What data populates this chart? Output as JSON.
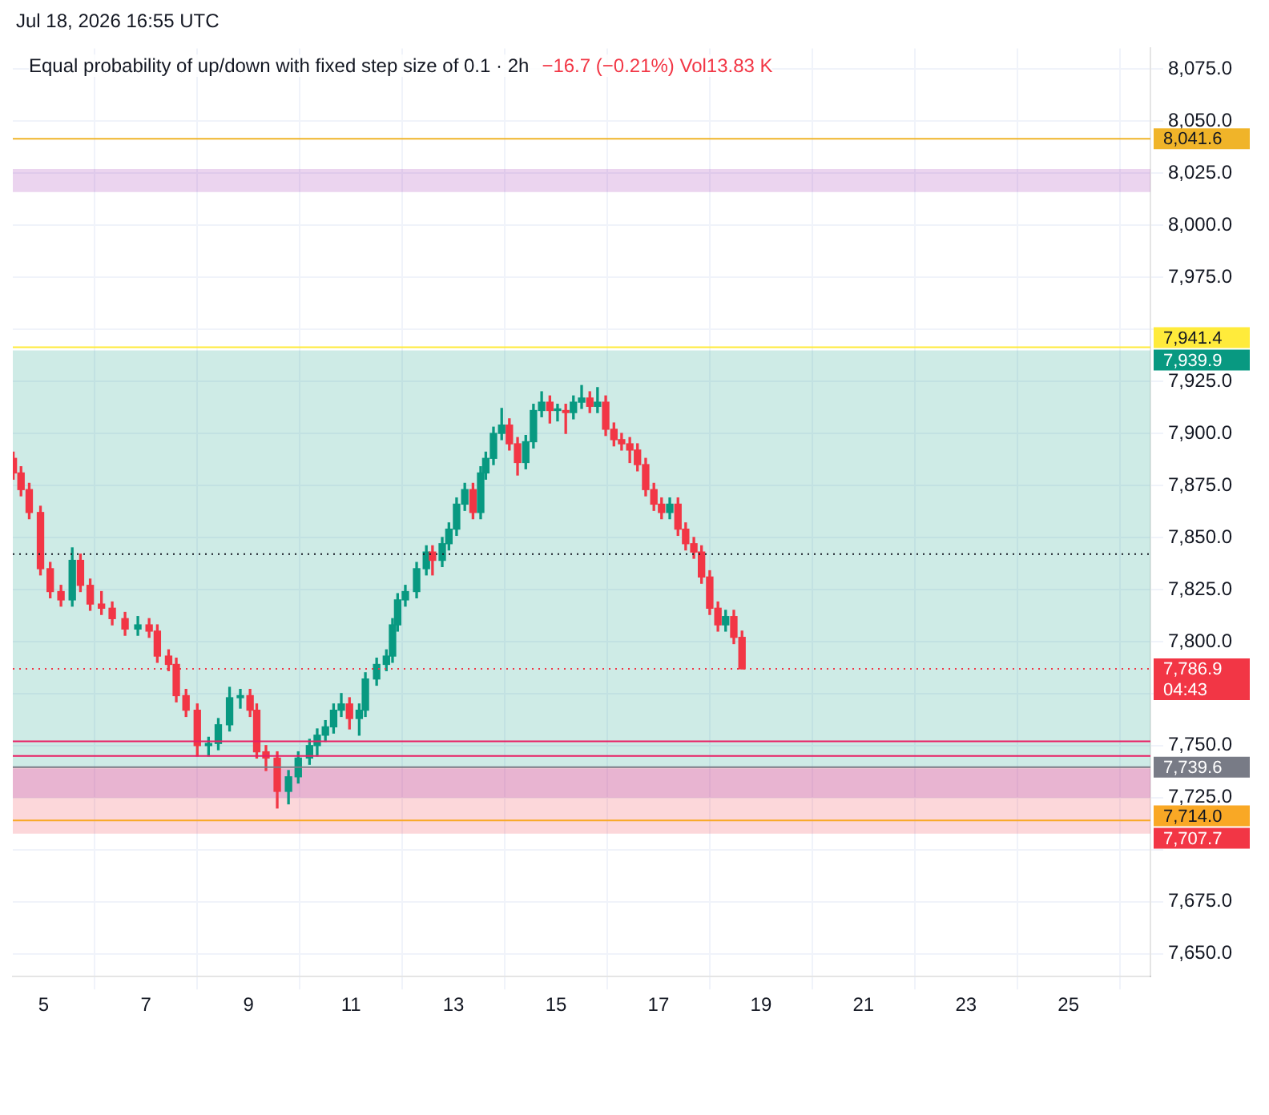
{
  "chart_data": {
    "type": "candlestick",
    "title": "Equal probability of up/down with fixed step size of 0.1 · 2h",
    "subtitle": "−16.7 (−0.21%)  Vol13.83 K",
    "annotations": [
      "Jul 18, 2026 16:55 UTC"
    ],
    "x": [
      4.41,
      4.56,
      4.72,
      4.94,
      5.13,
      5.34,
      5.56,
      5.72,
      5.91,
      6.13,
      6.34,
      6.59,
      6.84,
      7.06,
      7.22,
      7.44,
      7.59,
      7.78,
      8.0,
      8.22,
      8.41,
      8.63,
      8.84,
      9.03,
      9.16,
      9.34,
      9.56,
      9.78,
      9.97,
      10.19,
      10.34,
      10.5,
      10.66,
      10.81,
      10.97,
      11.16,
      11.28,
      11.5,
      11.69,
      11.81,
      11.91,
      12.06,
      12.28,
      12.47,
      12.59,
      12.78,
      12.91,
      13.06,
      13.22,
      13.38,
      13.53,
      13.63,
      13.78,
      13.94,
      14.09,
      14.25,
      14.41,
      14.56,
      14.72,
      14.88,
      15.03,
      15.19,
      15.34,
      15.5,
      15.66,
      15.81,
      15.97,
      16.13,
      16.28,
      16.44,
      16.59,
      16.75,
      16.91,
      17.06,
      17.22,
      17.38,
      17.53,
      17.69,
      17.84,
      18.0,
      18.16,
      18.31,
      18.47,
      18.63
    ],
    "ohlc": [
      [
        7888,
        7891,
        7878,
        7881
      ],
      [
        7881,
        7884,
        7870,
        7873
      ],
      [
        7873,
        7876,
        7859,
        7862
      ],
      [
        7862,
        7865,
        7832,
        7835
      ],
      [
        7835,
        7838,
        7821,
        7824
      ],
      [
        7824,
        7827,
        7817,
        7820
      ],
      [
        7820,
        7845,
        7817,
        7839
      ],
      [
        7839,
        7842,
        7824,
        7827
      ],
      [
        7827,
        7830,
        7815,
        7818
      ],
      [
        7818,
        7824,
        7813,
        7816
      ],
      [
        7816,
        7819,
        7808,
        7811
      ],
      [
        7811,
        7814,
        7803,
        7806
      ],
      [
        7806,
        7812,
        7803,
        7808
      ],
      [
        7808,
        7811,
        7802,
        7805
      ],
      [
        7805,
        7808,
        7790,
        7793
      ],
      [
        7793,
        7796,
        7786,
        7789
      ],
      [
        7789,
        7792,
        7771,
        7774
      ],
      [
        7774,
        7777,
        7764,
        7767
      ],
      [
        7767,
        7770,
        7745,
        7750
      ],
      [
        7750,
        7754,
        7745,
        7751
      ],
      [
        7751,
        7763,
        7748,
        7760
      ],
      [
        7760,
        7778,
        7757,
        7773
      ],
      [
        7773,
        7777,
        7768,
        7774
      ],
      [
        7774,
        7777,
        7764,
        7767
      ],
      [
        7767,
        7770,
        7744,
        7747
      ],
      [
        7747,
        7750,
        7738,
        7744
      ],
      [
        7744,
        7747,
        7720,
        7728
      ],
      [
        7728,
        7738,
        7722,
        7735
      ],
      [
        7735,
        7747,
        7732,
        7744
      ],
      [
        7744,
        7753,
        7741,
        7750
      ],
      [
        7750,
        7758,
        7745,
        7755
      ],
      [
        7755,
        7762,
        7752,
        7759
      ],
      [
        7759,
        7770,
        7756,
        7767
      ],
      [
        7767,
        7775,
        7764,
        7770
      ],
      [
        7770,
        7773,
        7758,
        7763
      ],
      [
        7763,
        7770,
        7755,
        7767
      ],
      [
        7767,
        7785,
        7764,
        7782
      ],
      [
        7782,
        7792,
        7779,
        7789
      ],
      [
        7789,
        7796,
        7786,
        7793
      ],
      [
        7793,
        7811,
        7790,
        7808
      ],
      [
        7808,
        7823,
        7805,
        7820
      ],
      [
        7820,
        7827,
        7817,
        7824
      ],
      [
        7824,
        7838,
        7821,
        7835
      ],
      [
        7835,
        7846,
        7832,
        7843
      ],
      [
        7843,
        7846,
        7832,
        7839
      ],
      [
        7839,
        7850,
        7836,
        7847
      ],
      [
        7847,
        7857,
        7844,
        7854
      ],
      [
        7854,
        7869,
        7851,
        7866
      ],
      [
        7866,
        7876,
        7863,
        7873
      ],
      [
        7873,
        7876,
        7859,
        7862
      ],
      [
        7862,
        7884,
        7859,
        7881
      ],
      [
        7881,
        7891,
        7878,
        7888
      ],
      [
        7888,
        7903,
        7885,
        7900
      ],
      [
        7900,
        7912,
        7897,
        7904
      ],
      [
        7904,
        7907,
        7892,
        7895
      ],
      [
        7895,
        7898,
        7880,
        7886
      ],
      [
        7886,
        7899,
        7883,
        7896
      ],
      [
        7896,
        7914,
        7893,
        7911
      ],
      [
        7911,
        7920,
        7908,
        7915
      ],
      [
        7915,
        7918,
        7905,
        7911
      ],
      [
        7911,
        7914,
        7906,
        7911
      ],
      [
        7911,
        7914,
        7900,
        7910
      ],
      [
        7910,
        7918,
        7907,
        7915
      ],
      [
        7915,
        7923,
        7912,
        7917
      ],
      [
        7917,
        7920,
        7910,
        7913
      ],
      [
        7913,
        7922,
        7910,
        7915
      ],
      [
        7915,
        7918,
        7899,
        7902
      ],
      [
        7902,
        7905,
        7894,
        7897
      ],
      [
        7897,
        7900,
        7892,
        7895
      ],
      [
        7895,
        7898,
        7886,
        7892
      ],
      [
        7892,
        7895,
        7882,
        7885
      ],
      [
        7885,
        7888,
        7870,
        7873
      ],
      [
        7873,
        7876,
        7863,
        7866
      ],
      [
        7866,
        7869,
        7859,
        7862
      ],
      [
        7862,
        7869,
        7859,
        7866
      ],
      [
        7866,
        7869,
        7851,
        7854
      ],
      [
        7854,
        7857,
        7844,
        7847
      ],
      [
        7847,
        7850,
        7840,
        7843
      ],
      [
        7843,
        7846,
        7828,
        7831
      ],
      [
        7831,
        7834,
        7813,
        7816
      ],
      [
        7816,
        7819,
        7805,
        7808
      ],
      [
        7808,
        7815,
        7805,
        7812
      ],
      [
        7812,
        7815,
        7799,
        7802
      ],
      [
        7802,
        7805,
        7786.9,
        7786.9
      ]
    ],
    "xlim": [
      4.4,
      26.6
    ],
    "xticks": [
      5,
      7,
      9,
      11,
      13,
      15,
      17,
      19,
      21,
      23,
      25
    ],
    "ylim": [
      7639,
      8085
    ],
    "yticks": [
      {
        "value": 7650,
        "label": "7,650.0"
      },
      {
        "value": 7675,
        "label": "7,675.0"
      },
      {
        "value": 7700,
        "label": null
      },
      {
        "value": 7725,
        "label": "7,725.0"
      },
      {
        "value": 7750,
        "label": "7,750.0"
      },
      {
        "value": 7775,
        "label": null
      },
      {
        "value": 7800,
        "label": "7,800.0"
      },
      {
        "value": 7825,
        "label": "7,825.0"
      },
      {
        "value": 7850,
        "label": "7,850.0"
      },
      {
        "value": 7875,
        "label": "7,875.0"
      },
      {
        "value": 7900,
        "label": "7,900.0"
      },
      {
        "value": 7925,
        "label": "7,925.0"
      },
      {
        "value": 7950,
        "label": null
      },
      {
        "value": 7975,
        "label": "7,975.0"
      },
      {
        "value": 8000,
        "label": "8,000.0"
      },
      {
        "value": 8025,
        "label": "8,025.0"
      },
      {
        "value": 8050,
        "label": "8,050.0"
      },
      {
        "value": 8075,
        "label": "8,075.0"
      }
    ],
    "bands": [
      {
        "axis": "y",
        "from": 7739.6,
        "to": 7939.9,
        "label": "7,939.9",
        "color": "#089981"
      },
      {
        "axis": "y",
        "from": 7739.6,
        "to": 7707.7,
        "label": "7,707.7",
        "color": "#f23645"
      },
      {
        "axis": "y",
        "from": 7725,
        "to": 7739,
        "color": "#9c27b0"
      },
      {
        "axis": "y",
        "from": 8016,
        "to": 8027,
        "color": "#9c27b0"
      }
    ],
    "ref_lines": [
      {
        "axis": "y",
        "value": 8041.6,
        "label": "8,041.6",
        "color": "#f0b429"
      },
      {
        "axis": "y",
        "value": 7941.4,
        "label": "7,941.4",
        "color": "#ffeb3b"
      },
      {
        "axis": "y",
        "value": 7842,
        "color": "#131722",
        "line_style": "dotted"
      },
      {
        "axis": "y",
        "value": 7786.9,
        "label": "7,786.9\n04:43",
        "color": "#f23645",
        "line_style": "dotted"
      },
      {
        "axis": "y",
        "value": 7752,
        "color": "#e91e63"
      },
      {
        "axis": "y",
        "value": 7745,
        "color": "#e91e63"
      },
      {
        "axis": "y",
        "value": 7739.6,
        "label": "7,739.6",
        "color": "#787b86"
      },
      {
        "axis": "y",
        "value": 7714.0,
        "label": "7,714.0",
        "color": "#f9a825"
      }
    ],
    "grid": true,
    "legend": false
  }
}
